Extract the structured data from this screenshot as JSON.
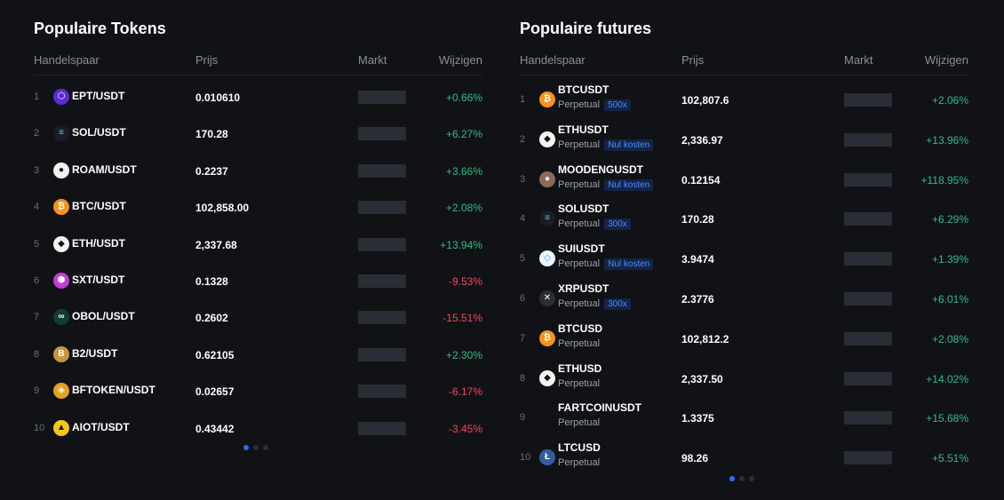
{
  "tokens": {
    "title": "Populaire Tokens",
    "headers": {
      "pair": "Handelspaar",
      "price": "Prijs",
      "market": "Markt",
      "change": "Wijzigen"
    },
    "rows": [
      {
        "rank": "1",
        "pair": "EPT/USDT",
        "price": "0.010610",
        "change": "+0.66%",
        "dir": "up",
        "icon": "ept-coin-icon",
        "color": "#5b2bd6"
      },
      {
        "rank": "2",
        "pair": "SOL/USDT",
        "price": "170.28",
        "change": "+6.27%",
        "dir": "up",
        "icon": "sol-coin-icon",
        "color": "#1b1b2a"
      },
      {
        "rank": "3",
        "pair": "ROAM/USDT",
        "price": "0.2237",
        "change": "+3.66%",
        "dir": "up",
        "icon": "roam-coin-icon",
        "color": "#f2f2f2"
      },
      {
        "rank": "4",
        "pair": "BTC/USDT",
        "price": "102,858.00",
        "change": "+2.08%",
        "dir": "up",
        "icon": "btc-coin-icon",
        "color": "#f7931a"
      },
      {
        "rank": "5",
        "pair": "ETH/USDT",
        "price": "2,337.68",
        "change": "+13.94%",
        "dir": "up",
        "icon": "eth-coin-icon",
        "color": "#f2f2f2"
      },
      {
        "rank": "6",
        "pair": "SXT/USDT",
        "price": "0.1328",
        "change": "-9.53%",
        "dir": "down",
        "icon": "sxt-coin-icon",
        "color": "#c43cd8"
      },
      {
        "rank": "7",
        "pair": "OBOL/USDT",
        "price": "0.2602",
        "change": "-15.51%",
        "dir": "down",
        "icon": "obol-coin-icon",
        "color": "#0f3d35"
      },
      {
        "rank": "8",
        "pair": "B2/USDT",
        "price": "0.62105",
        "change": "+2.30%",
        "dir": "up",
        "icon": "b2-coin-icon",
        "color": "#c8963e"
      },
      {
        "rank": "9",
        "pair": "BFTOKEN/USDT",
        "price": "0.02657",
        "change": "-6.17%",
        "dir": "down",
        "icon": "bftoken-coin-icon",
        "color": "#e6a21e"
      },
      {
        "rank": "10",
        "pair": "AIOT/USDT",
        "price": "0.43442",
        "change": "-3.45%",
        "dir": "down",
        "icon": "aiot-coin-icon",
        "color": "#f5c518"
      }
    ]
  },
  "futures": {
    "title": "Populaire futures",
    "headers": {
      "pair": "Handelspaar",
      "price": "Prijs",
      "market": "Markt",
      "change": "Wijzigen"
    },
    "rows": [
      {
        "rank": "1",
        "pair": "BTCUSDT",
        "sub": "Perpetual",
        "tag": "500x",
        "price": "102,807.6",
        "change": "+2.06%",
        "dir": "up",
        "icon": "btc-coin-icon",
        "color": "#f7931a"
      },
      {
        "rank": "2",
        "pair": "ETHUSDT",
        "sub": "Perpetual",
        "tag": "Nul kosten",
        "price": "2,336.97",
        "change": "+13.96%",
        "dir": "up",
        "icon": "eth-coin-icon",
        "color": "#f2f2f2"
      },
      {
        "rank": "3",
        "pair": "MOODENGUSDT",
        "sub": "Perpetual",
        "tag": "Nul kosten",
        "price": "0.12154",
        "change": "+118.95%",
        "dir": "up",
        "icon": "moodeng-coin-icon",
        "color": "#8a6b5a"
      },
      {
        "rank": "4",
        "pair": "SOLUSDT",
        "sub": "Perpetual",
        "tag": "300x",
        "price": "170.28",
        "change": "+6.29%",
        "dir": "up",
        "icon": "sol-coin-icon",
        "color": "#1b1b2a"
      },
      {
        "rank": "5",
        "pair": "SUIUSDT",
        "sub": "Perpetual",
        "tag": "Nul kosten",
        "price": "3.9474",
        "change": "+1.39%",
        "dir": "up",
        "icon": "sui-coin-icon",
        "color": "#e8f4ff"
      },
      {
        "rank": "6",
        "pair": "XRPUSDT",
        "sub": "Perpetual",
        "tag": "300x",
        "price": "2.3776",
        "change": "+6.01%",
        "dir": "up",
        "icon": "xrp-coin-icon",
        "color": "#2a2d36"
      },
      {
        "rank": "7",
        "pair": "BTCUSD",
        "sub": "Perpetual",
        "tag": "",
        "price": "102,812.2",
        "change": "+2.08%",
        "dir": "up",
        "icon": "btc-coin-icon",
        "color": "#f7931a"
      },
      {
        "rank": "8",
        "pair": "ETHUSD",
        "sub": "Perpetual",
        "tag": "",
        "price": "2,337.50",
        "change": "+14.02%",
        "dir": "up",
        "icon": "eth-coin-icon",
        "color": "#f2f2f2"
      },
      {
        "rank": "9",
        "pair": "FARTCOINUSDT",
        "sub": "Perpetual",
        "tag": "",
        "price": "1.3375",
        "change": "+15.68%",
        "dir": "up",
        "icon": "fartcoin-coin-icon",
        "color": "#111216"
      },
      {
        "rank": "10",
        "pair": "LTCUSD",
        "sub": "Perpetual",
        "tag": "",
        "price": "98.26",
        "change": "+5.51%",
        "dir": "up",
        "icon": "ltc-coin-icon",
        "color": "#345d9d"
      }
    ]
  },
  "pagination": {
    "tokens_active": 1,
    "futures_active": 1,
    "total": 3
  }
}
